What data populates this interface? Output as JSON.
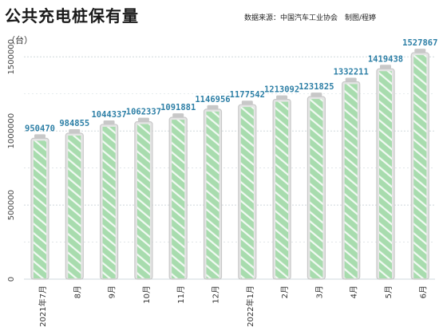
{
  "header": {
    "title": "公共充电桩保有量",
    "source": "数据来源：中国汽车工业协会　制图/程婷",
    "unit": "（台）"
  },
  "colors": {
    "bar_fill": "#a8dcae",
    "bar_stripe": "#ffffff",
    "battery_shell": "#c8c8c8",
    "value_label": "#2d7fa6",
    "grid": "#cfd8dc"
  },
  "chart_data": {
    "type": "bar",
    "style": "battery-shaped bars with diagonal stripes",
    "categories": [
      "2021年7月",
      "8月",
      "9月",
      "10月",
      "11月",
      "12月",
      "2022年1月",
      "2月",
      "3月",
      "4月",
      "5月",
      "6月"
    ],
    "values": [
      950470,
      984855,
      1044337,
      1062337,
      1091881,
      1146956,
      1177542,
      1213092,
      1231825,
      1332211,
      1419438,
      1527867
    ],
    "value_labels": [
      "950470",
      "984855",
      "1044337",
      "1062337",
      "1091881",
      "1146956",
      "1177542",
      "1213092",
      "1231825",
      "1332211",
      "1419438",
      "1527867"
    ],
    "ylim": [
      0,
      1550000
    ],
    "yticks": [
      0,
      500000,
      1000000,
      1500000
    ],
    "ytick_labels": [
      "0",
      "500000",
      "1000000",
      "1500000"
    ],
    "grid": true,
    "ylabel": "（台）",
    "xlabel": ""
  }
}
